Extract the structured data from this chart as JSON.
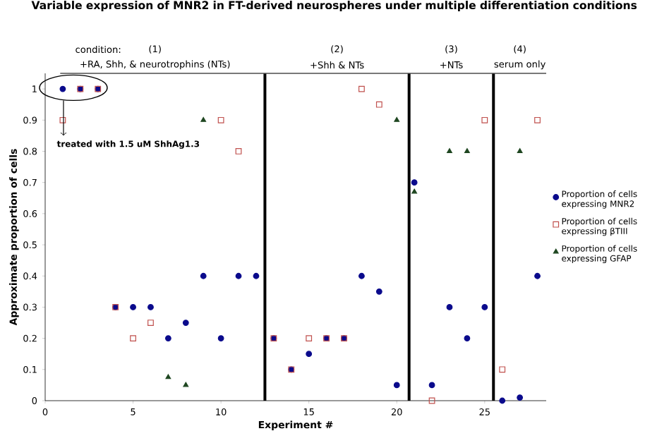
{
  "chart_data": {
    "type": "scatter",
    "title": "Variable expression of MNR2 in FT-derived neurospheres under multiple differentiation conditions",
    "xlabel": "Experiment #",
    "ylabel": "Approximate proportion of cells",
    "xlim": [
      0,
      28.5
    ],
    "xticks": [
      0,
      5,
      10,
      15,
      20,
      25
    ],
    "ylim": [
      0,
      1.05
    ],
    "yticks": [
      0,
      0.1,
      0.2,
      0.3,
      0.4,
      0.5,
      0.6,
      0.7,
      0.8,
      0.9,
      1
    ],
    "legend": "right",
    "series": [
      {
        "name": "Proportion of cells expressing MNR2",
        "color": "#0a0a8c",
        "marker": "circle",
        "x": [
          1,
          2,
          3,
          4,
          5,
          6,
          7,
          8,
          9,
          10,
          11,
          12,
          13,
          14,
          15,
          16,
          17,
          18,
          19,
          20,
          21,
          22,
          23,
          24,
          25,
          26,
          27,
          28
        ],
        "values": [
          1,
          1,
          1,
          0.3,
          0.3,
          0.3,
          0.2,
          0.25,
          0.4,
          0.2,
          0.4,
          0.4,
          0.2,
          0.1,
          0.15,
          0.2,
          0.2,
          0.4,
          0.35,
          0.05,
          0.7,
          0.05,
          0.3,
          0.2,
          0.3,
          0,
          0.01,
          0.4
        ]
      },
      {
        "name": "Proportion of cells expressing βTIII",
        "color": "#c0504d",
        "marker": "square",
        "x": [
          1,
          2,
          3,
          4,
          5,
          6,
          10,
          11,
          13,
          14,
          15,
          16,
          17,
          18,
          19,
          22,
          25,
          26,
          28
        ],
        "values": [
          0.9,
          1,
          1,
          0.3,
          0.2,
          0.25,
          0.9,
          0.8,
          0.2,
          0.1,
          0.2,
          0.2,
          0.2,
          1,
          0.95,
          0,
          0.9,
          0.1,
          0.9
        ]
      },
      {
        "name": "Proportion of cells expressing GFAP",
        "color": "#1e4620",
        "marker": "triangle",
        "x": [
          7,
          8,
          9,
          20,
          21,
          23,
          24,
          27
        ],
        "values": [
          0.075,
          0.05,
          0.9,
          0.9,
          0.67,
          0.8,
          0.8,
          0.8
        ]
      }
    ],
    "ref_lines": [
      {
        "axis": "x",
        "value": 12.5
      },
      {
        "axis": "x",
        "value": 20.7
      },
      {
        "axis": "x",
        "value": 25.5
      }
    ],
    "annotations": [
      "condition:",
      "(1)",
      "+RA, Shh, & neurotrophins (NTs)",
      "(2)",
      "+Shh & NTs",
      "(3)",
      "+NTs",
      "(4)",
      "serum only",
      "treated with 1.5 uM ShhAg1.3"
    ]
  }
}
